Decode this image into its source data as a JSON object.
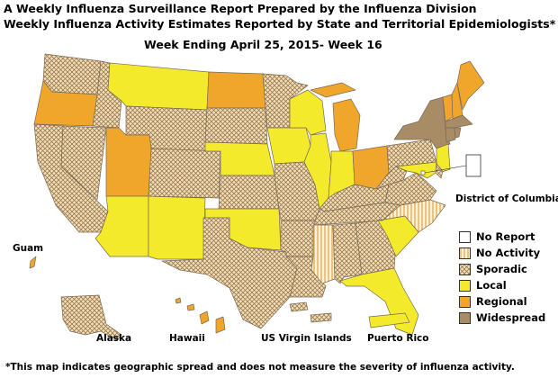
{
  "title": {
    "line1": "A Weekly Influenza Surveillance Report Prepared by the Influenza Division",
    "line2": "Weekly Influenza Activity Estimates Reported by State and Territorial Epidemiologists*",
    "week": "Week Ending April 25, 2015- Week 16"
  },
  "legend": [
    {
      "label": "No Report",
      "level": "no-report",
      "color": "#ffffff"
    },
    {
      "label": "No Activity",
      "level": "no-activity",
      "color": "#f7e1b0"
    },
    {
      "label": "Sporadic",
      "level": "sporadic",
      "color": "#e6cfa0"
    },
    {
      "label": "Local",
      "level": "local",
      "color": "#f3ea2b"
    },
    {
      "label": "Regional",
      "level": "regional",
      "color": "#f0a52b"
    },
    {
      "label": "Widespread",
      "level": "widespread",
      "color": "#a88c66"
    }
  ],
  "labels": {
    "dc": "District of Columbia",
    "guam": "Guam",
    "alaska": "Alaska",
    "hawaii": "Hawaii",
    "usvi": "US Virgin Islands",
    "pr": "Puerto Rico"
  },
  "footnote": "*This map indicates geographic spread and does not measure the severity of influenza activity.",
  "states": {
    "WA": "sporadic",
    "OR": "regional",
    "CA": "sporadic",
    "NV": "sporadic",
    "ID": "sporadic",
    "MT": "local",
    "WY": "sporadic",
    "UT": "regional",
    "AZ": "local",
    "NM": "local",
    "CO": "sporadic",
    "ND": "regional",
    "SD": "sporadic",
    "NE": "local",
    "KS": "sporadic",
    "OK": "local",
    "TX": "sporadic",
    "MN": "sporadic",
    "IA": "local",
    "MO": "sporadic",
    "AR": "sporadic",
    "LA": "sporadic",
    "WI": "local",
    "IL": "local",
    "MS": "no-activity",
    "MI": "regional",
    "IN": "local",
    "KY": "sporadic",
    "TN": "sporadic",
    "AL": "sporadic",
    "OH": "regional",
    "GA": "sporadic",
    "FL": "local",
    "SC": "local",
    "NC": "no-activity",
    "VA": "sporadic",
    "WV": "sporadic",
    "PA": "sporadic",
    "NY": "widespread",
    "VT": "regional",
    "NH": "regional",
    "ME": "regional",
    "MA": "widespread",
    "CT": "widespread",
    "RI": "widespread",
    "NJ": "local",
    "DE": "sporadic",
    "MD": "local",
    "DC": "no-report",
    "AK": "sporadic",
    "HI": "regional",
    "GU": "regional",
    "VI": "sporadic",
    "PR": "local"
  }
}
